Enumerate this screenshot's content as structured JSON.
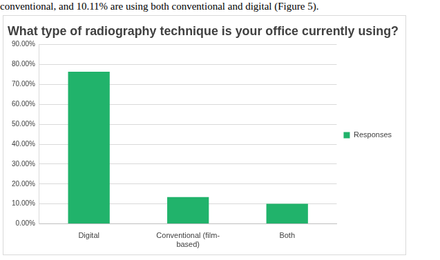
{
  "chart_data": {
    "type": "bar",
    "title": "What type of radiography technique is your office currently using?",
    "annotations": [
      "conventional, and 10.11% are using both conventional and digital (Figure 5)."
    ],
    "categories": [
      "Digital",
      "Conventional (film-based)",
      "Both"
    ],
    "series": [
      {
        "name": "Responses",
        "color": "#21b36b",
        "values": [
          76.4,
          13.49,
          10.11
        ]
      }
    ],
    "ylim": [
      0,
      90
    ],
    "yticks": [
      {
        "value": 0,
        "label": "0.00%"
      },
      {
        "value": 10,
        "label": "10.00%"
      },
      {
        "value": 20,
        "label": "20.00%"
      },
      {
        "value": 30,
        "label": "30.00%"
      },
      {
        "value": 40,
        "label": "40.00%"
      },
      {
        "value": 50,
        "label": "50.00%"
      },
      {
        "value": 60,
        "label": "60.00%"
      },
      {
        "value": 70,
        "label": "70.00%"
      },
      {
        "value": 80,
        "label": "80.00%"
      },
      {
        "value": 90,
        "label": "90.00%"
      }
    ],
    "grid": true,
    "legend": "right"
  }
}
